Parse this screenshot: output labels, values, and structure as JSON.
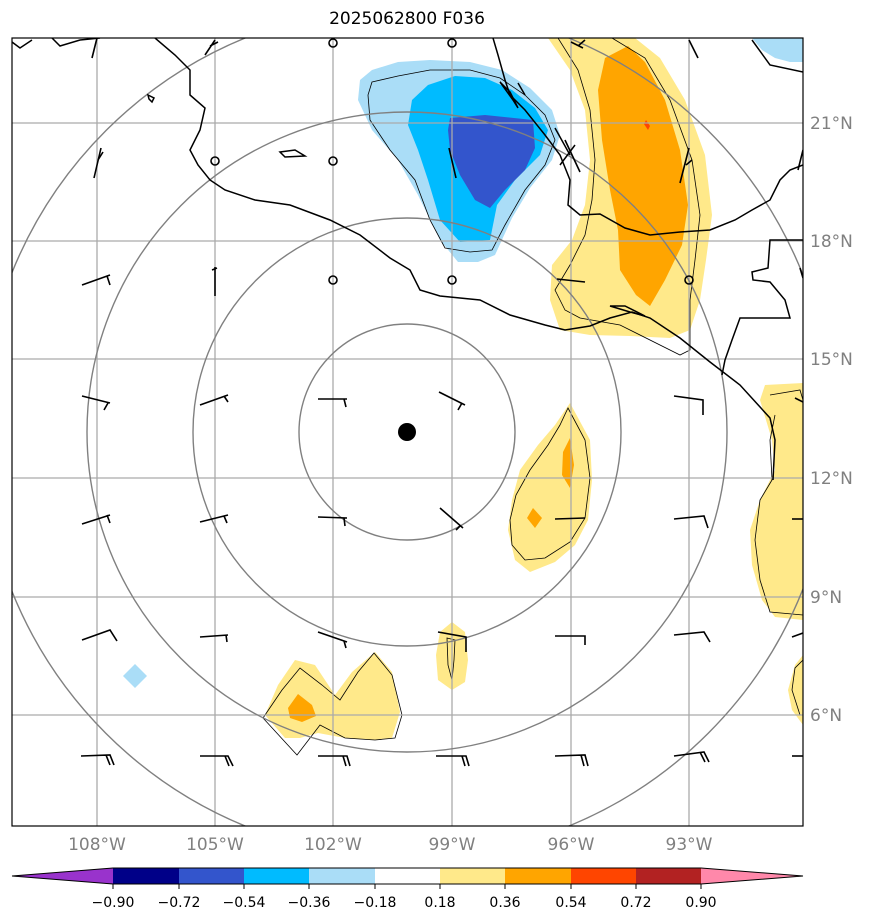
{
  "title": "2025062800 F036",
  "latitude_labels": [
    "21°N",
    "18°N",
    "15°N",
    "12°N",
    "9°N",
    "6°N"
  ],
  "longitude_labels": [
    "108°W",
    "105°W",
    "102°W",
    "99°W",
    "96°W",
    "93°W"
  ],
  "colorbar": {
    "ticks": [
      "−0.90",
      "−0.72",
      "−0.54",
      "−0.36",
      "−0.18",
      "0.18",
      "0.36",
      "0.54",
      "0.72",
      "0.90"
    ],
    "colors": [
      "#9933cc",
      "#000088",
      "#3355cc",
      "#00bbff",
      "#aaddf7",
      "#ffffff",
      "#ffe98a",
      "#ffa500",
      "#ff4500",
      "#b22222",
      "#ff88aa"
    ]
  },
  "center_marker": {
    "lon": -100.2,
    "lat": 13.2
  }
}
